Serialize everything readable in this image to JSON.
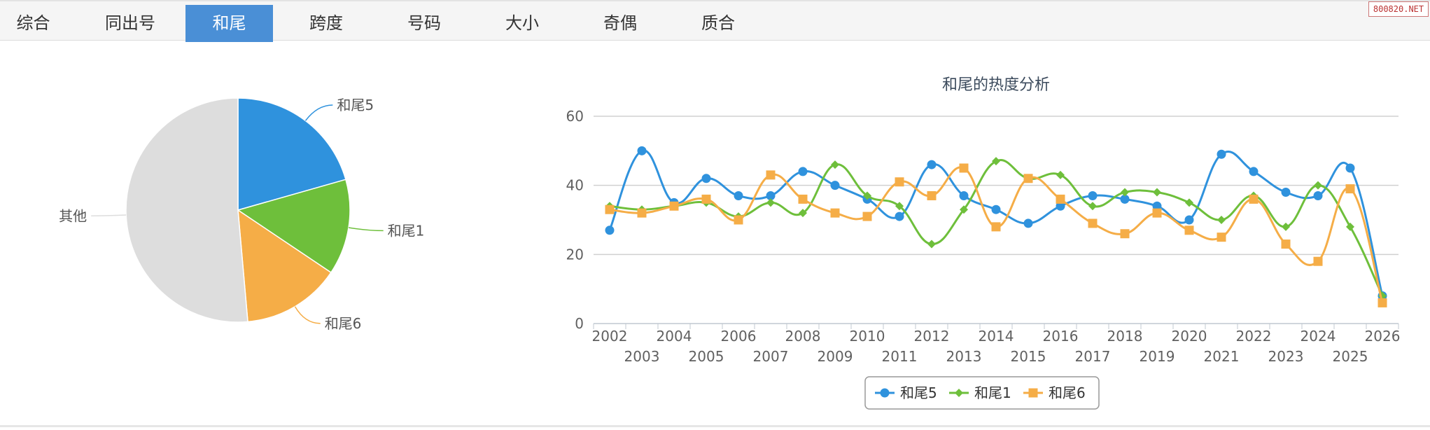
{
  "tabs": [
    {
      "label": "综合",
      "active": false
    },
    {
      "label": "同出号",
      "active": false
    },
    {
      "label": "和尾",
      "active": true
    },
    {
      "label": "跨度",
      "active": false
    },
    {
      "label": "号码",
      "active": false
    },
    {
      "label": "大小",
      "active": false
    },
    {
      "label": "奇偶",
      "active": false
    },
    {
      "label": "质合",
      "active": false
    }
  ],
  "watermark": "800820.NET",
  "chart_data": [
    {
      "type": "pie",
      "slices": [
        {
          "name": "和尾5",
          "value": 20.6,
          "color": "#2f92dd"
        },
        {
          "name": "和尾1",
          "value": 13.8,
          "color": "#6ebf3b"
        },
        {
          "name": "和尾6",
          "value": 14.2,
          "color": "#f5ad47"
        },
        {
          "name": "其他",
          "value": 51.4,
          "color": "#dddddd"
        }
      ]
    },
    {
      "type": "line",
      "title": "和尾的热度分析",
      "x": [
        "2002",
        "2003",
        "2004",
        "2005",
        "2006",
        "2007",
        "2008",
        "2009",
        "2010",
        "2011",
        "2012",
        "2013",
        "2014",
        "2015",
        "2016",
        "2017",
        "2018",
        "2019",
        "2020",
        "2021",
        "2022",
        "2023",
        "2024",
        "2025",
        "2026"
      ],
      "ylim": [
        0,
        60
      ],
      "yticks": [
        0,
        20,
        40,
        60
      ],
      "grid": true,
      "legend": "bottom-center",
      "series": [
        {
          "name": "和尾5",
          "color": "#2f92dd",
          "marker": "circle",
          "values": [
            27,
            50,
            35,
            42,
            37,
            37,
            44,
            40,
            36,
            31,
            46,
            37,
            33,
            29,
            34,
            37,
            36,
            34,
            30,
            49,
            44,
            38,
            37,
            45,
            8
          ]
        },
        {
          "name": "和尾1",
          "color": "#6ebf3b",
          "marker": "diamond",
          "values": [
            34,
            33,
            34,
            35,
            31,
            35,
            32,
            46,
            37,
            34,
            23,
            33,
            47,
            42,
            43,
            34,
            38,
            38,
            35,
            30,
            37,
            28,
            40,
            28,
            8
          ]
        },
        {
          "name": "和尾6",
          "color": "#f5ad47",
          "marker": "square",
          "values": [
            33,
            32,
            34,
            36,
            30,
            43,
            36,
            32,
            31,
            41,
            37,
            45,
            28,
            42,
            36,
            29,
            26,
            32,
            27,
            25,
            36,
            23,
            18,
            39,
            6
          ]
        }
      ]
    }
  ]
}
